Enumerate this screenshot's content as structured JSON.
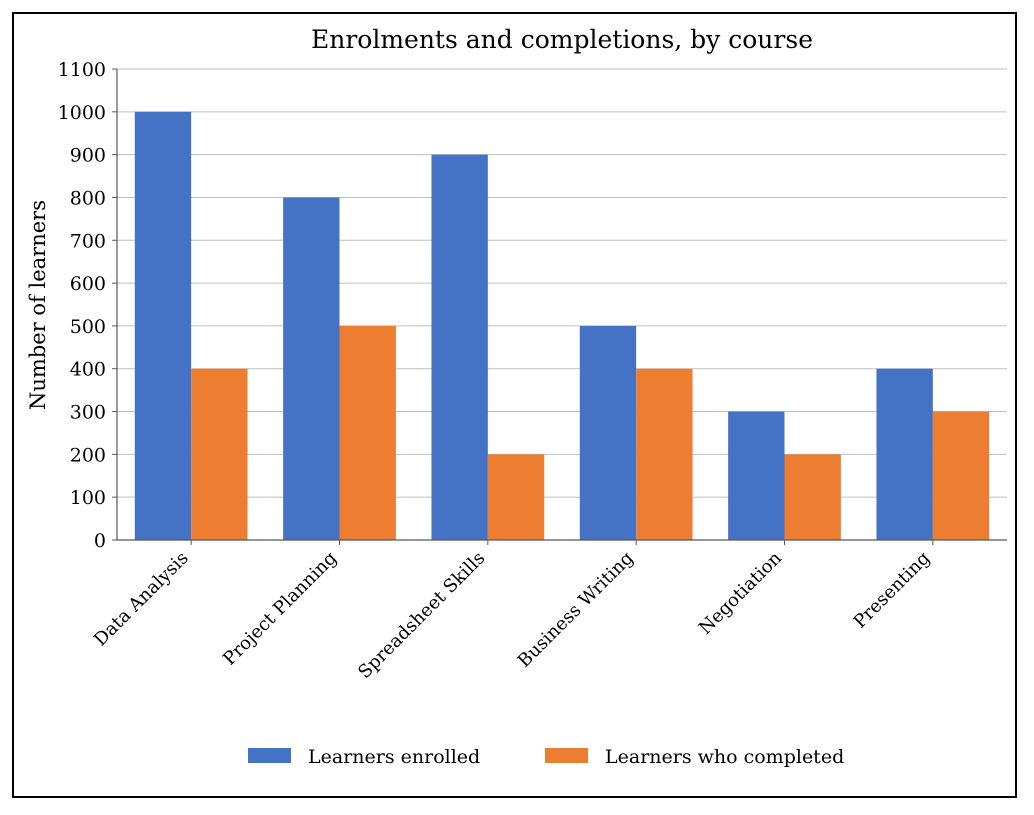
{
  "chart_data": {
    "type": "bar",
    "title": "Enrolments and completions, by course",
    "xlabel": "",
    "ylabel": "Number of learners",
    "categories": [
      "Data Analysis",
      "Project Planning",
      "Spreadsheet Skills",
      "Business Writing",
      "Negotiation",
      "Presenting"
    ],
    "series": [
      {
        "name": "Learners enrolled",
        "values": [
          1000,
          800,
          900,
          500,
          300,
          400
        ],
        "color": "#4472c4"
      },
      {
        "name": "Learners who completed",
        "values": [
          400,
          500,
          200,
          400,
          200,
          300
        ],
        "color": "#ed7d31"
      }
    ],
    "ylim": [
      0,
      1100
    ],
    "yticks": [
      0,
      100,
      200,
      300,
      400,
      500,
      600,
      700,
      800,
      900,
      1000,
      1100
    ],
    "grid": true,
    "legend_position": "bottom-center",
    "gridline_color": "#bfbfbf",
    "axis_color": "#595959"
  }
}
